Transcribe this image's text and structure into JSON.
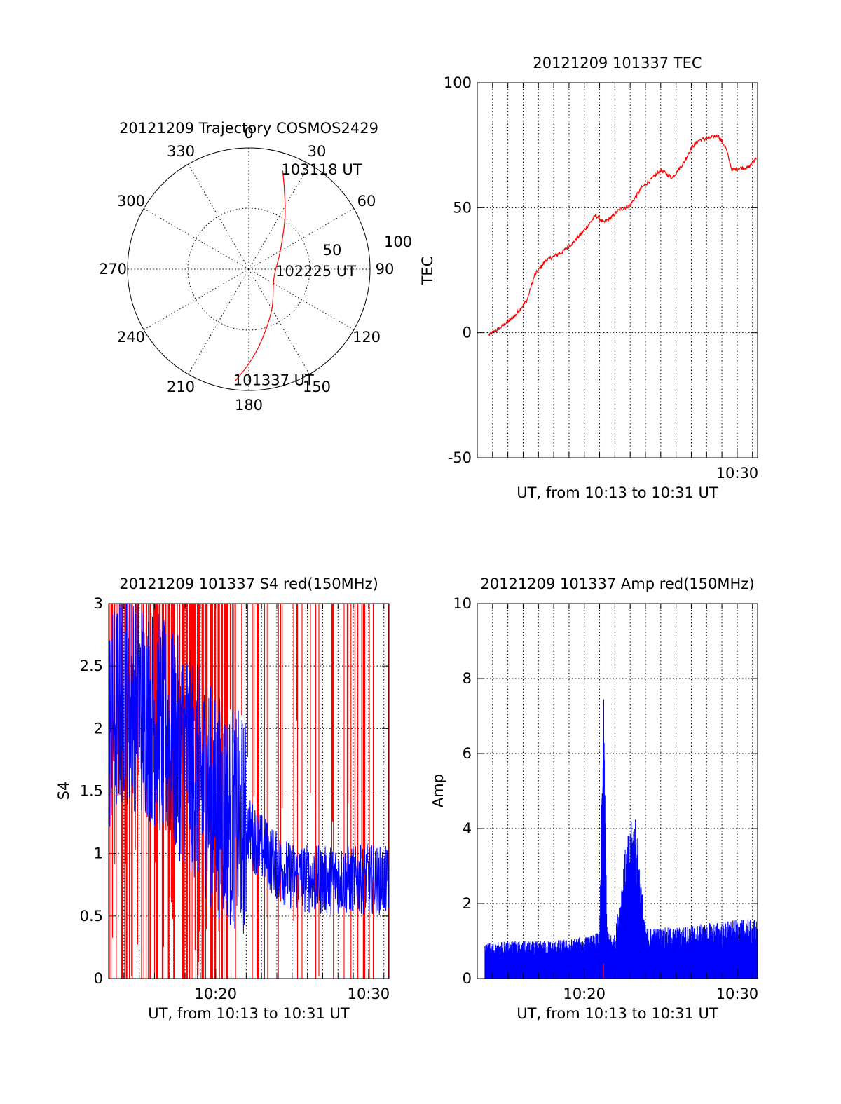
{
  "figure": {
    "background": "#ffffff",
    "trace_red": "#ff0000",
    "trace_blue": "#0000ff"
  },
  "chart_data": [
    {
      "id": "trajectory",
      "type": "polar",
      "title": "20121209 Trajectory COSMOS2429",
      "angle_labels": [
        "0",
        "30",
        "60",
        "90",
        "120",
        "150",
        "180",
        "210",
        "240",
        "270",
        "300",
        "330"
      ],
      "radius_labels": [
        "50",
        "100"
      ],
      "rlim": [
        0,
        100
      ],
      "series": [
        {
          "color": "#ff0000",
          "points": [
            {
              "az": 187,
              "r": 93
            },
            {
              "az": 180,
              "r": 78
            },
            {
              "az": 170,
              "r": 60
            },
            {
              "az": 150,
              "r": 38
            },
            {
              "az": 110,
              "r": 22
            },
            {
              "az": 60,
              "r": 30
            },
            {
              "az": 35,
              "r": 52
            },
            {
              "az": 24,
              "r": 72
            },
            {
              "az": 19,
              "r": 86
            }
          ]
        }
      ],
      "annotations": [
        {
          "text": "103118 UT",
          "az": 18,
          "r": 87
        },
        {
          "text": "102225 UT",
          "az": 93,
          "r": 22
        },
        {
          "text": "101337 UT",
          "az": 188,
          "r": 92
        }
      ],
      "grid": true
    },
    {
      "id": "tec",
      "type": "line",
      "title": "20121209 101337 TEC",
      "xlabel": "UT, from 10:13 to 10:31 UT",
      "ylabel": "TEC",
      "xlim": [
        "10:13:00",
        "10:31:20"
      ],
      "ylim": [
        -50,
        100
      ],
      "yticks": [
        -50,
        0,
        50,
        100
      ],
      "xticks": [
        "10:30"
      ],
      "grid": true,
      "series": [
        {
          "color": "#ff0000",
          "x": [
            "10:13:45",
            "10:14:30",
            "10:15:30",
            "10:16:15",
            "10:16:45",
            "10:17:30",
            "10:18:30",
            "10:19:15",
            "10:20:00",
            "10:20:45",
            "10:21:15",
            "10:21:45",
            "10:22:15",
            "10:23:00",
            "10:23:45",
            "10:24:30",
            "10:25:00",
            "10:25:45",
            "10:26:30",
            "10:27:00",
            "10:27:30",
            "10:28:15",
            "10:28:45",
            "10:29:15",
            "10:29:40",
            "10:30:15",
            "10:30:45",
            "10:31:15"
          ],
          "y": [
            -1,
            2,
            7,
            13,
            23,
            29,
            32,
            36,
            41,
            47,
            44,
            46,
            49,
            51,
            58,
            62,
            65,
            62,
            68,
            74,
            77,
            78,
            79,
            74,
            65,
            66,
            66,
            70
          ]
        }
      ]
    },
    {
      "id": "s4",
      "type": "line",
      "title": "20121209 101337 S4 red(150MHz)",
      "xlabel": "UT, from 10:13 to 10:31 UT",
      "ylabel": "S4",
      "xlim": [
        "10:13:00",
        "10:31:20"
      ],
      "ylim": [
        0,
        3
      ],
      "yticks": [
        0,
        0.5,
        1,
        1.5,
        2,
        2.5,
        3
      ],
      "ytick_labels": [
        "0",
        "0.5",
        "1",
        "1.5",
        "2",
        "2.5",
        "3"
      ],
      "xticks": [
        "10:20",
        "10:30"
      ],
      "grid": true,
      "series": [
        {
          "color": "#ff0000",
          "x": [
            "10:13:00",
            "10:31:20"
          ],
          "y": [
            3,
            3
          ]
        },
        {
          "color": "#0000ff",
          "x": [
            "10:13:00",
            "10:14:00",
            "10:15:00",
            "10:16:00",
            "10:17:00",
            "10:18:00",
            "10:19:00",
            "10:20:00",
            "10:21:00",
            "10:22:00",
            "10:23:00",
            "10:24:00",
            "10:25:00",
            "10:26:00",
            "10:27:00",
            "10:28:00",
            "10:29:00",
            "10:30:00",
            "10:31:00"
          ],
          "y": [
            2.0,
            2.3,
            2.2,
            2.1,
            1.9,
            1.8,
            1.6,
            1.4,
            1.3,
            1.2,
            1.05,
            0.9,
            0.82,
            0.8,
            0.78,
            0.8,
            0.78,
            0.8,
            0.78
          ]
        }
      ]
    },
    {
      "id": "amp",
      "type": "line",
      "title": "20121209 101337 Amp red(150MHz)",
      "xlabel": "UT, from 10:13 to 10:31 UT",
      "ylabel": "Amp",
      "xlim": [
        "10:13:00",
        "10:31:20"
      ],
      "ylim": [
        0,
        10
      ],
      "yticks": [
        0,
        2,
        4,
        6,
        8,
        10
      ],
      "xticks": [
        "10:20",
        "10:30"
      ],
      "grid": true,
      "series": [
        {
          "color": "#0000ff",
          "x": [
            "10:13:30",
            "10:15:00",
            "10:17:00",
            "10:19:00",
            "10:20:30",
            "10:21:00",
            "10:21:15",
            "10:21:30",
            "10:22:00",
            "10:22:40",
            "10:23:00",
            "10:23:20",
            "10:24:00",
            "10:26:00",
            "10:28:00",
            "10:30:00",
            "10:31:20"
          ],
          "y": [
            0.9,
            0.95,
            0.95,
            1.0,
            1.1,
            1.2,
            7.7,
            1.2,
            1.1,
            3.3,
            3.9,
            4.3,
            1.3,
            1.3,
            1.4,
            1.5,
            1.5
          ]
        },
        {
          "color": "#ff0000",
          "x": [
            "10:21:15",
            "10:21:15"
          ],
          "y": [
            0,
            0.4
          ]
        }
      ]
    }
  ]
}
